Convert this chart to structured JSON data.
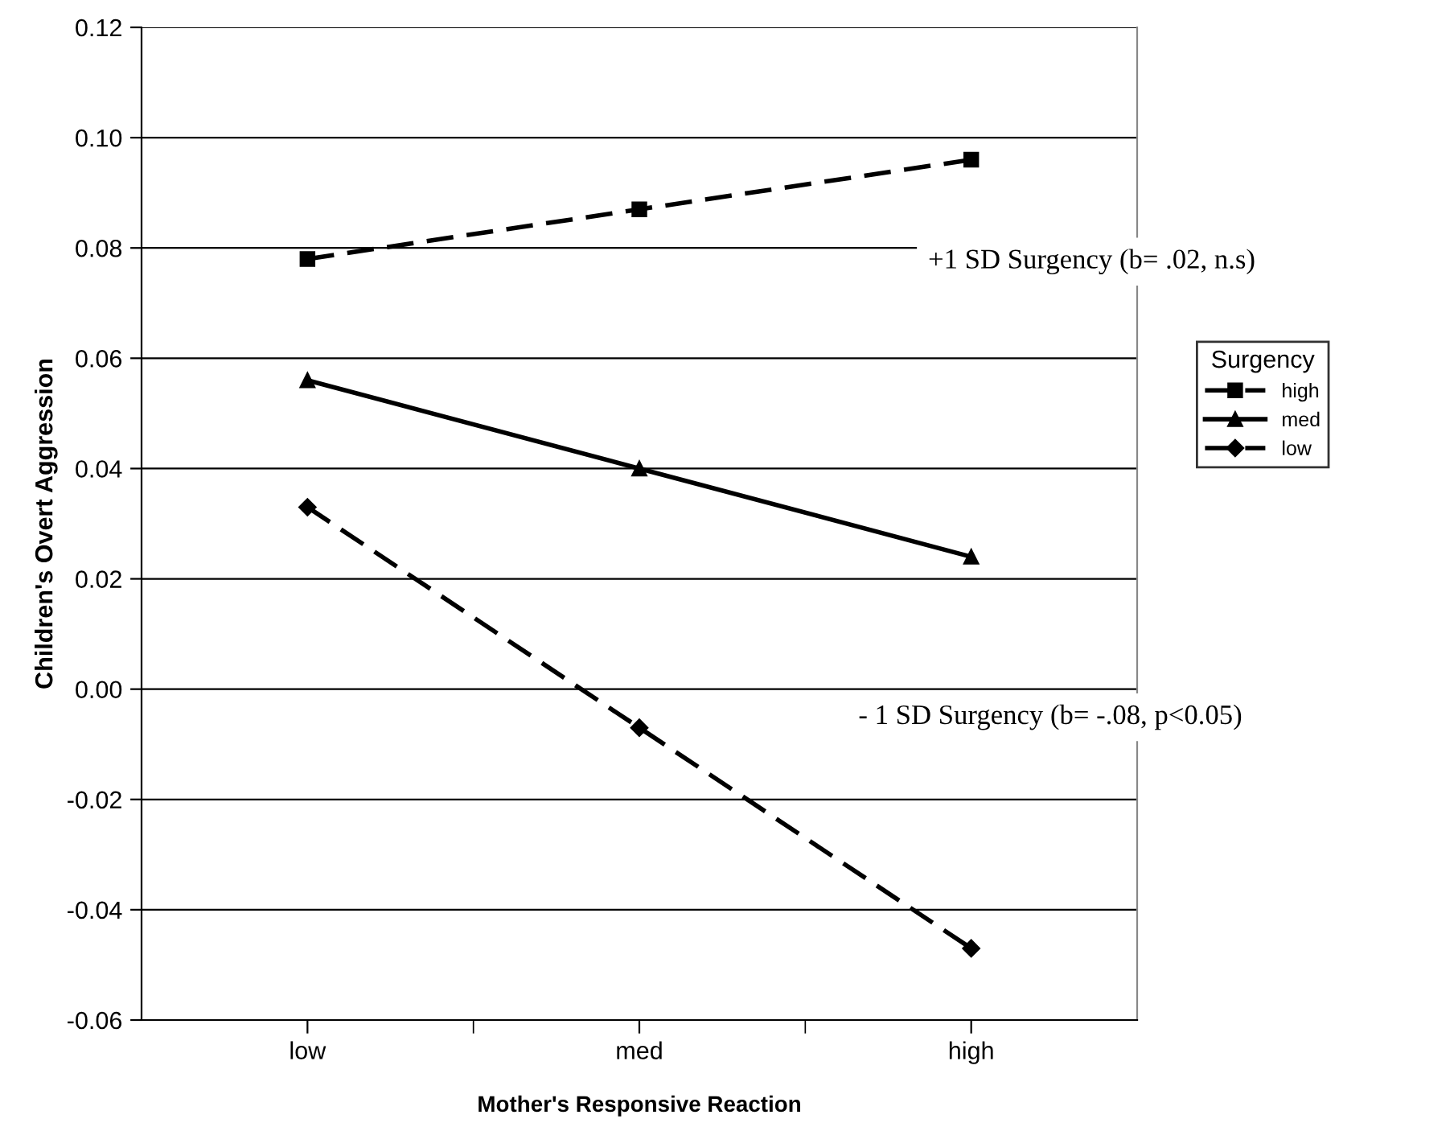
{
  "chart_data": {
    "type": "line",
    "xlabel": "Mother's Responsive Reaction",
    "ylabel": "Children's Overt Aggression",
    "categories": [
      "low",
      "med",
      "high"
    ],
    "series": [
      {
        "name": "high",
        "color": "#000000",
        "values": [
          0.078,
          0.087,
          0.096
        ],
        "marker": "square",
        "line_style": "dashed"
      },
      {
        "name": "med",
        "color": "#000000",
        "values": [
          0.056,
          0.04,
          0.024
        ],
        "marker": "triangle",
        "line_style": "solid"
      },
      {
        "name": "low",
        "color": "#000000",
        "values": [
          0.033,
          -0.007,
          -0.047
        ],
        "marker": "diamond",
        "line_style": "dashed"
      }
    ],
    "ylim": [
      -0.06,
      0.12
    ],
    "yticks": [
      {
        "value": -0.06,
        "label": "-0.06"
      },
      {
        "value": -0.04,
        "label": "-0.04"
      },
      {
        "value": -0.02,
        "label": "-0.02"
      },
      {
        "value": 0,
        "label": "0.00"
      },
      {
        "value": 0.02,
        "label": "0.02"
      },
      {
        "value": 0.04,
        "label": "0.04"
      },
      {
        "value": 0.06,
        "label": "0.06"
      },
      {
        "value": 0.08,
        "label": "0.08"
      },
      {
        "value": 0.1,
        "label": "0.10"
      },
      {
        "value": 0.12,
        "label": "0.12"
      }
    ],
    "grid": "y",
    "legend": "right",
    "legend_title": "Surgency",
    "annotations": [
      "+1 SD Surgency (b= .02, n.s)",
      "- 1 SD Surgency (b= -.08, p<0.05)"
    ]
  }
}
